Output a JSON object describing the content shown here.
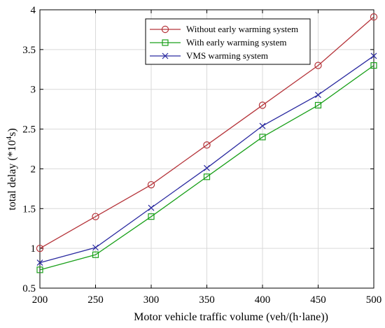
{
  "chart_data": {
    "type": "line",
    "xlabel": "Motor vehicle traffic volume (veh/(h·lane))",
    "ylabel_prefix": "total delay (*10",
    "ylabel_exp": "4",
    "ylabel_suffix": "s)",
    "x": [
      200,
      250,
      300,
      350,
      400,
      450,
      500
    ],
    "xlim": [
      200,
      500
    ],
    "ylim": [
      0.5,
      4
    ],
    "xticks": [
      200,
      250,
      300,
      350,
      400,
      450,
      500
    ],
    "yticks": [
      0.5,
      1,
      1.5,
      2,
      2.5,
      3,
      3.5,
      4
    ],
    "grid": true,
    "legend_position": "top-right",
    "series": [
      {
        "name": "Without early warming system",
        "values": [
          1.0,
          1.4,
          1.8,
          2.3,
          2.8,
          3.3,
          3.91
        ],
        "color": "#b5343a",
        "marker": "circle"
      },
      {
        "name": "With early warming system",
        "values": [
          0.73,
          0.92,
          1.4,
          1.9,
          2.4,
          2.8,
          3.3
        ],
        "color": "#1aa01a",
        "marker": "square"
      },
      {
        "name": "VMS warming system",
        "values": [
          0.82,
          1.01,
          1.51,
          2.01,
          2.54,
          2.93,
          3.42
        ],
        "color": "#2a2aa0",
        "marker": "x"
      }
    ]
  }
}
